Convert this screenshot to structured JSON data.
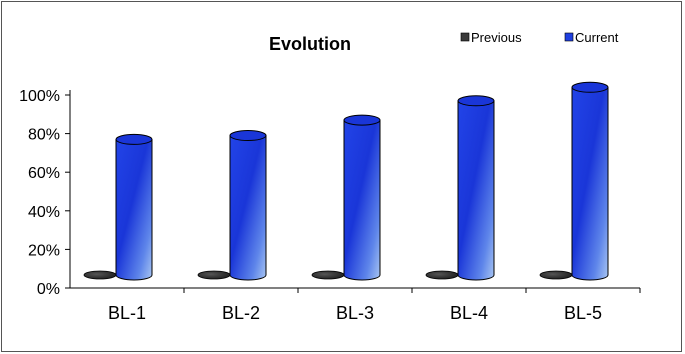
{
  "chart_data": {
    "type": "bar",
    "title": "Evolution",
    "categories": [
      "BL-1",
      "BL-2",
      "BL-3",
      "BL-4",
      "BL-5"
    ],
    "series": [
      {
        "name": "Previous",
        "values": [
          0,
          0,
          0,
          0,
          0
        ]
      },
      {
        "name": "Current",
        "values": [
          77,
          79,
          87,
          97,
          104
        ]
      }
    ],
    "y_ticks": [
      "0%",
      "20%",
      "40%",
      "60%",
      "80%",
      "100%"
    ],
    "ylim": [
      0,
      110
    ],
    "legend_position": "top-right",
    "grid": false,
    "colors": {
      "previous": "#3a3a3a",
      "current": "#1f3fe0",
      "current_light": "#8ab0f0",
      "current_dark": "#0a1f9a"
    }
  }
}
